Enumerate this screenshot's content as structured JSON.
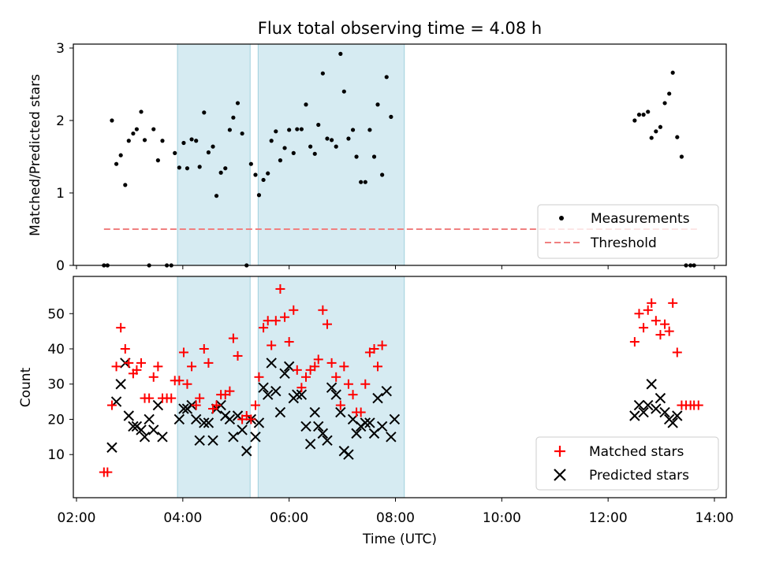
{
  "chart_data": [
    {
      "type": "scatter",
      "title": "Flux total observing time = 4.08 h",
      "xlabel": "",
      "ylabel": "Matched/Predicted stars",
      "xlim": [
        "02:00",
        "14:00"
      ],
      "ylim": [
        0,
        3
      ],
      "yticks": [
        "0",
        "1",
        "2",
        "3"
      ],
      "shaded_intervals": [
        [
          "03:54",
          "05:16"
        ],
        [
          "05:25",
          "08:10"
        ]
      ],
      "legend_position": "lower-right",
      "series": [
        {
          "name": "Measurements",
          "kind": "scatter",
          "color": "#000000",
          "x": [
            "02:31",
            "02:35",
            "02:40",
            "02:45",
            "02:50",
            "02:55",
            "02:59",
            "03:04",
            "03:08",
            "03:13",
            "03:17",
            "03:22",
            "03:27",
            "03:32",
            "03:37",
            "03:42",
            "03:47",
            "03:51",
            "03:56",
            "04:01",
            "04:05",
            "04:10",
            "04:15",
            "04:19",
            "04:24",
            "04:29",
            "04:34",
            "04:38",
            "04:43",
            "04:48",
            "04:53",
            "04:57",
            "05:02",
            "05:07",
            "05:12",
            "05:17",
            "05:22",
            "05:26",
            "05:31",
            "05:36",
            "05:40",
            "05:45",
            "05:50",
            "05:55",
            "06:00",
            "06:05",
            "06:09",
            "06:14",
            "06:19",
            "06:24",
            "06:29",
            "06:33",
            "06:38",
            "06:43",
            "06:48",
            "06:53",
            "06:58",
            "07:02",
            "07:07",
            "07:12",
            "07:16",
            "07:21",
            "07:26",
            "07:31",
            "07:36",
            "07:40",
            "07:45",
            "07:50",
            "07:55",
            "07:59",
            "08:04",
            "08:09",
            "12:30",
            "12:35",
            "12:40",
            "12:45",
            "12:49",
            "12:54",
            "12:59",
            "13:04",
            "13:09",
            "13:13",
            "13:18",
            "13:23",
            "13:28",
            "13:33",
            "13:37",
            "13:42"
          ],
          "y": [
            0,
            0,
            2,
            1.4,
            1.52,
            1.11,
            1.72,
            1.82,
            1.88,
            2.12,
            1.73,
            0,
            1.88,
            1.45,
            1.72,
            0,
            0,
            1.55,
            1.35,
            1.69,
            1.34,
            1.74,
            1.72,
            1.36,
            2.11,
            1.56,
            1.64,
            0.96,
            1.28,
            1.34,
            1.87,
            2.04,
            2.24,
            1.82,
            0,
            1.4,
            1.25,
            0.97,
            1.18,
            1.27,
            1.72,
            1.85,
            1.45,
            1.62,
            1.87,
            1.55,
            1.88,
            1.88,
            2.22,
            1.64,
            1.54,
            1.94,
            2.65,
            1.75,
            1.73,
            1.64,
            2.92,
            2.4,
            1.75,
            1.87,
            1.5,
            1.15,
            1.15,
            1.87,
            1.5,
            2.22,
            1.25,
            2.6,
            2.05,
            null,
            null,
            null,
            2.0,
            2.08,
            2.08,
            2.12,
            1.76,
            1.85,
            1.91,
            2.24,
            2.37,
            2.66,
            1.77,
            1.5,
            0,
            0,
            0,
            null
          ]
        },
        {
          "name": "Threshold",
          "kind": "dashed-line",
          "color": "#f08080",
          "x": [
            "02:31",
            "13:42"
          ],
          "y": [
            0.5,
            0.5
          ]
        }
      ]
    },
    {
      "type": "scatter",
      "title": "",
      "xlabel": "Time (UTC)",
      "ylabel": "Count",
      "xlim": [
        "02:00",
        "14:00"
      ],
      "xticks": [
        "02:00",
        "04:00",
        "06:00",
        "08:00",
        "10:00",
        "12:00",
        "14:00"
      ],
      "ylim": [
        2,
        59
      ],
      "yticks": [
        "10",
        "20",
        "30",
        "40",
        "50"
      ],
      "shaded_intervals": [
        [
          "03:54",
          "05:16"
        ],
        [
          "05:25",
          "08:10"
        ]
      ],
      "legend_position": "lower-right",
      "series": [
        {
          "name": "Matched stars",
          "kind": "plus-marker",
          "color": "#ff0000",
          "x": [
            "02:31",
            "02:35",
            "02:40",
            "02:45",
            "02:50",
            "02:55",
            "02:59",
            "03:04",
            "03:08",
            "03:13",
            "03:17",
            "03:22",
            "03:27",
            "03:32",
            "03:37",
            "03:42",
            "03:47",
            "03:51",
            "03:56",
            "04:01",
            "04:05",
            "04:10",
            "04:15",
            "04:19",
            "04:24",
            "04:29",
            "04:34",
            "04:38",
            "04:43",
            "04:48",
            "04:53",
            "04:57",
            "05:02",
            "05:07",
            "05:12",
            "05:17",
            "05:22",
            "05:26",
            "05:31",
            "05:36",
            "05:40",
            "05:45",
            "05:50",
            "05:55",
            "06:00",
            "06:05",
            "06:09",
            "06:14",
            "06:19",
            "06:24",
            "06:29",
            "06:33",
            "06:38",
            "06:43",
            "06:48",
            "06:53",
            "06:58",
            "07:02",
            "07:07",
            "07:12",
            "07:16",
            "07:21",
            "07:26",
            "07:31",
            "07:36",
            "07:40",
            "07:45",
            "07:50",
            "07:55",
            "07:59",
            "08:04",
            "08:09",
            "12:30",
            "12:35",
            "12:40",
            "12:45",
            "12:49",
            "12:54",
            "12:59",
            "13:04",
            "13:09",
            "13:13",
            "13:18",
            "13:23",
            "13:28",
            "13:33",
            "13:37",
            "13:42"
          ],
          "y": [
            5,
            5,
            24,
            35,
            46,
            40,
            36,
            33,
            34,
            36,
            26,
            26,
            32,
            35,
            26,
            26,
            26,
            31,
            31,
            39,
            30,
            35,
            24,
            26,
            40,
            36,
            23,
            24,
            27,
            27,
            28,
            43,
            38,
            20,
            21,
            20,
            24,
            32,
            46,
            48,
            41,
            48,
            57,
            49,
            42,
            51,
            34,
            29,
            32,
            34,
            35,
            37,
            51,
            47,
            36,
            32,
            24,
            35,
            30,
            27,
            22,
            22,
            30,
            39,
            40,
            35,
            41,
            null,
            null,
            null,
            null,
            null,
            42,
            50,
            46,
            51,
            53,
            48,
            44,
            47,
            45,
            53,
            39,
            24,
            24,
            24,
            24,
            24
          ]
        },
        {
          "name": "Predicted stars",
          "kind": "x-marker",
          "color": "#000000",
          "x": [
            "02:40",
            "02:45",
            "02:50",
            "02:55",
            "02:59",
            "03:04",
            "03:08",
            "03:13",
            "03:17",
            "03:22",
            "03:27",
            "03:32",
            "03:37",
            "03:42",
            "03:56",
            "04:01",
            "04:05",
            "04:10",
            "04:15",
            "04:19",
            "04:24",
            "04:29",
            "04:34",
            "04:38",
            "04:43",
            "04:48",
            "04:53",
            "04:57",
            "05:02",
            "05:07",
            "05:12",
            "05:17",
            "05:22",
            "05:26",
            "05:31",
            "05:36",
            "05:40",
            "05:45",
            "05:50",
            "05:55",
            "06:00",
            "06:05",
            "06:09",
            "06:14",
            "06:19",
            "06:24",
            "06:29",
            "06:33",
            "06:38",
            "06:43",
            "06:48",
            "06:53",
            "06:58",
            "07:02",
            "07:07",
            "07:12",
            "07:16",
            "07:21",
            "07:26",
            "07:31",
            "07:36",
            "07:40",
            "07:45",
            "07:50",
            "07:55",
            "07:59",
            "08:04",
            "08:09",
            "12:30",
            "12:35",
            "12:40",
            "12:45",
            "12:49",
            "12:54",
            "12:59",
            "13:04",
            "13:09",
            "13:13",
            "13:18"
          ],
          "y": [
            12,
            25,
            30,
            36,
            21,
            18,
            18,
            17,
            15,
            20,
            17,
            24,
            15,
            null,
            20,
            23,
            23,
            24,
            20,
            14,
            19,
            19,
            14,
            23,
            24,
            21,
            20,
            15,
            21,
            17,
            11,
            20,
            15,
            19,
            29,
            27,
            36,
            28,
            22,
            33,
            35,
            26,
            27,
            27,
            18,
            13,
            22,
            18,
            16,
            14,
            29,
            27,
            22,
            11,
            10,
            20,
            16,
            18,
            19,
            19,
            16,
            26,
            18,
            28,
            15,
            20,
            null,
            null,
            21,
            24,
            22,
            24,
            30,
            23,
            26,
            22,
            20,
            19,
            21
          ]
        }
      ]
    }
  ]
}
